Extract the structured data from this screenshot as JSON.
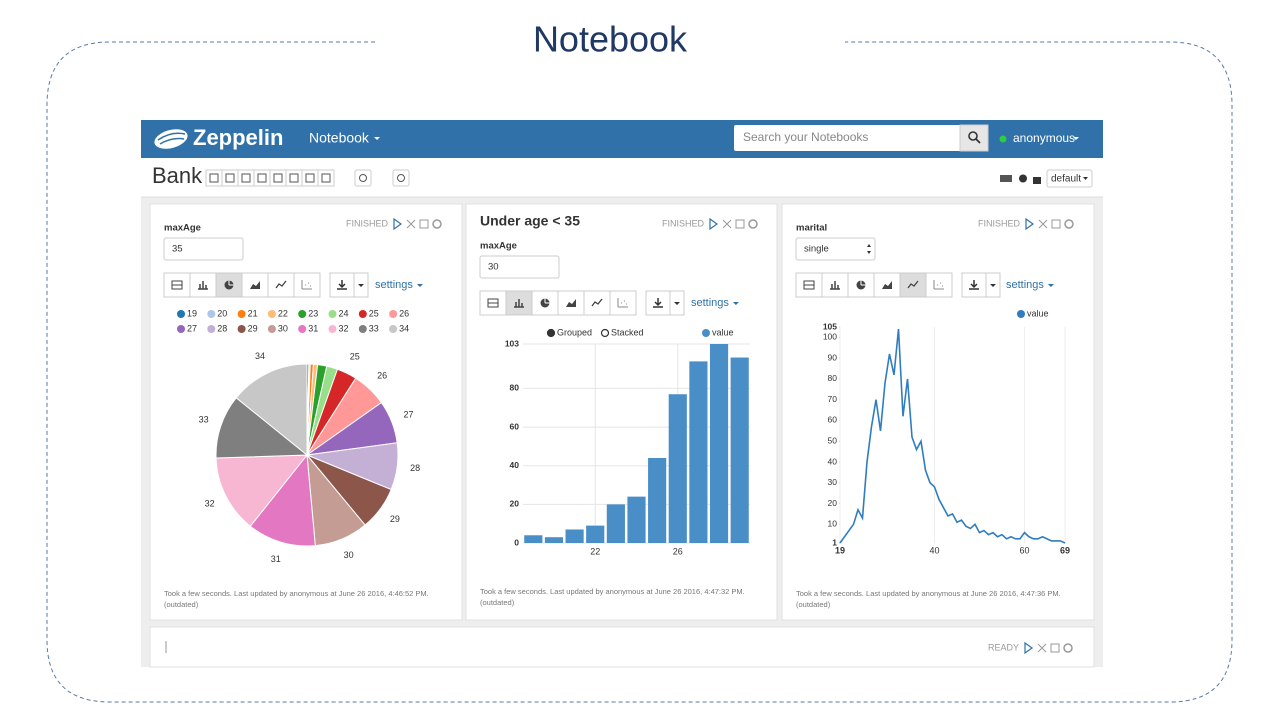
{
  "slide_title": "Notebook",
  "navbar": {
    "brand": "Zeppelin",
    "menu": "Notebook",
    "search_placeholder": "Search your Notebooks",
    "user": "anonymous"
  },
  "notebook": {
    "title": "Bank",
    "interpreter": "default"
  },
  "paragraphs": [
    {
      "param_label": "maxAge",
      "param_value": "35",
      "status": "FINISHED",
      "settings": "settings",
      "footer": "Took a few seconds. Last updated by anonymous at June 26 2016, 4:46:52 PM.",
      "footer_note": "(outdated)"
    },
    {
      "title": "Under age < 35",
      "param_label": "maxAge",
      "param_value": "30",
      "status": "FINISHED",
      "settings": "settings",
      "footer": "Took a few seconds. Last updated by anonymous at June 26 2016, 4:47:32 PM.",
      "footer_note": "(outdated)"
    },
    {
      "param_label": "marital",
      "param_value": "single",
      "status": "FINISHED",
      "settings": "settings",
      "footer": "Took a few seconds. Last updated by anonymous at June 26 2016, 4:47:36 PM.",
      "footer_note": "(outdated)"
    },
    {
      "status": "READY"
    }
  ],
  "chart_data": [
    {
      "type": "pie",
      "categories": [
        "19",
        "20",
        "21",
        "22",
        "23",
        "24",
        "25",
        "26",
        "27",
        "28",
        "29",
        "30",
        "31",
        "32",
        "33",
        "34"
      ],
      "values": [
        4,
        3,
        7,
        9,
        20,
        24,
        44,
        77,
        94,
        103,
        96,
        118,
        150,
        170,
        140,
        175
      ],
      "colors": [
        "#1f77b4",
        "#aec7e8",
        "#ff7f0e",
        "#ffbb78",
        "#2ca02c",
        "#98df8a",
        "#d62728",
        "#ff9896",
        "#9467bd",
        "#c5b0d5",
        "#8c564b",
        "#c49c94",
        "#e377c2",
        "#f7b6d2",
        "#7f7f7f",
        "#c7c7c7"
      ]
    },
    {
      "type": "bar",
      "controls": [
        "Grouped",
        "Stacked"
      ],
      "categories": [
        null,
        null,
        null,
        "22",
        null,
        null,
        null,
        "26",
        null,
        null,
        null
      ],
      "series": [
        {
          "name": "value",
          "color": "#4a8ec8",
          "values": [
            4,
            3,
            7,
            9,
            20,
            24,
            44,
            77,
            94,
            103,
            96
          ]
        }
      ],
      "ylim": [
        0,
        103
      ],
      "yticks": [
        0,
        20,
        40,
        60,
        80,
        103
      ],
      "grid": true
    },
    {
      "type": "line",
      "x": [
        19,
        20,
        21,
        22,
        23,
        24,
        25,
        26,
        27,
        28,
        29,
        30,
        31,
        32,
        33,
        34,
        35,
        36,
        37,
        38,
        39,
        40,
        41,
        42,
        43,
        44,
        45,
        46,
        47,
        48,
        49,
        50,
        51,
        52,
        53,
        54,
        55,
        56,
        57,
        58,
        59,
        60,
        61,
        62,
        63,
        64,
        65,
        66,
        67,
        68,
        69
      ],
      "series": [
        {
          "name": "value",
          "color": "#2f7dc0",
          "values": [
            1,
            4,
            7,
            10,
            17,
            13,
            40,
            57,
            70,
            55,
            78,
            92,
            82,
            104,
            62,
            80,
            52,
            46,
            50,
            36,
            30,
            28,
            22,
            18,
            14,
            15,
            11,
            12,
            9,
            8,
            10,
            6,
            7,
            5,
            6,
            4,
            5,
            3,
            4,
            3,
            3,
            6,
            4,
            3,
            3,
            4,
            3,
            2,
            2,
            2,
            1
          ]
        }
      ],
      "xlim": [
        19,
        69
      ],
      "xticks": [
        19,
        40,
        60,
        69
      ],
      "ylim": [
        1,
        105
      ],
      "yticks": [
        1,
        10,
        20,
        30,
        40,
        50,
        60,
        70,
        80,
        90,
        100,
        105
      ],
      "grid": true
    }
  ]
}
